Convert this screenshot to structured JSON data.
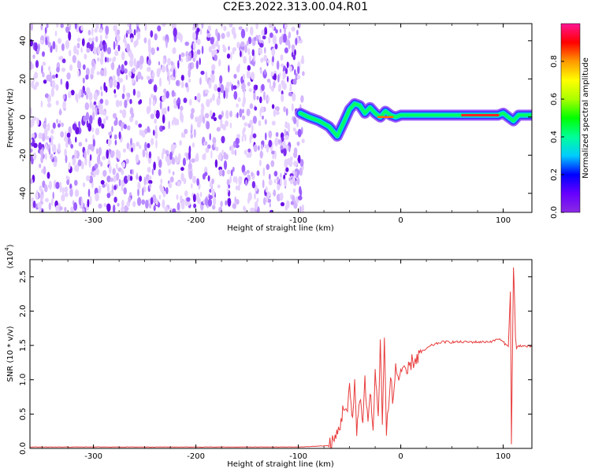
{
  "figure_title": "C2E3.2022.313.00.04.R01",
  "chart_data": [
    {
      "type": "heatmap",
      "title": "C2E3.2022.313.00.04.R01",
      "xlabel": "Height of straight line (km)",
      "ylabel": "Frequency (Hz)",
      "xlim": [
        -362,
        128
      ],
      "ylim": [
        -50,
        49
      ],
      "x_ticks": [
        -300,
        -200,
        -100,
        0,
        100
      ],
      "y_ticks": [
        -40,
        -20,
        0,
        20,
        40
      ],
      "grid": false,
      "colormap": "rainbow",
      "noise_region_x": [
        -362,
        -95
      ],
      "signal_track": {
        "x": [
          -98,
          -90,
          -80,
          -70,
          -62,
          -55,
          -50,
          -45,
          -40,
          -35,
          -30,
          -25,
          -20,
          -15,
          -10,
          -5,
          0,
          10,
          20,
          40,
          60,
          75,
          85,
          90,
          95,
          100,
          105,
          110,
          115,
          120,
          128
        ],
        "y": [
          2,
          0,
          -2,
          -5,
          -10,
          -2,
          4,
          7,
          6,
          2,
          5,
          2,
          0,
          3,
          1,
          0,
          1,
          1,
          1,
          1,
          1,
          1,
          1,
          1,
          1,
          2,
          0,
          -2,
          1,
          1,
          1
        ]
      },
      "colorbar": {
        "label": "Normalized spectral amplitude",
        "range": [
          0.0,
          1.0
        ],
        "ticks": [
          0.0,
          0.2,
          0.4,
          0.6,
          0.8
        ]
      }
    },
    {
      "type": "line",
      "xlabel": "Height of straight line (km)",
      "ylabel": "SNR (10 * v/v)",
      "y_multiplier": "(x10",
      "y_multiplier_exp": "4",
      "y_multiplier_close": ")",
      "xlim": [
        -362,
        128
      ],
      "ylim": [
        0,
        2.75
      ],
      "x_ticks": [
        -300,
        -200,
        -100,
        0,
        100
      ],
      "y_ticks": [
        0.0,
        0.5,
        1.0,
        1.5,
        2.0,
        2.5
      ],
      "grid": false,
      "line_color": "#e83c3c",
      "series": [
        {
          "x": [
            -362,
            -300,
            -200,
            -100,
            -70,
            -65,
            -60,
            -55,
            -52,
            -50,
            -47,
            -45,
            -43,
            -40,
            -37,
            -35,
            -32,
            -30,
            -27,
            -25,
            -22,
            -20,
            -18,
            -16,
            -14,
            -12,
            -10,
            -8,
            -5,
            -2,
            0,
            5,
            10,
            15,
            20,
            25,
            30,
            40,
            50,
            60,
            70,
            80,
            90,
            95,
            100,
            103,
            105,
            107,
            108,
            110,
            111,
            112,
            113,
            115,
            120,
            128
          ],
          "y": [
            0.02,
            0.02,
            0.02,
            0.02,
            0.04,
            0.1,
            0.3,
            0.65,
            0.5,
            0.9,
            0.35,
            1.0,
            0.3,
            0.7,
            0.45,
            1.0,
            0.35,
            0.85,
            0.25,
            1.15,
            0.4,
            1.65,
            0.3,
            1.6,
            0.25,
            0.55,
            1.15,
            0.6,
            1.2,
            1.0,
            1.15,
            1.05,
            1.25,
            1.3,
            1.4,
            1.45,
            1.5,
            1.55,
            1.55,
            1.55,
            1.55,
            1.55,
            1.56,
            1.6,
            1.55,
            1.5,
            1.5,
            2.3,
            0.05,
            2.65,
            2.2,
            1.6,
            1.45,
            1.5,
            1.49,
            1.48
          ]
        }
      ]
    }
  ]
}
